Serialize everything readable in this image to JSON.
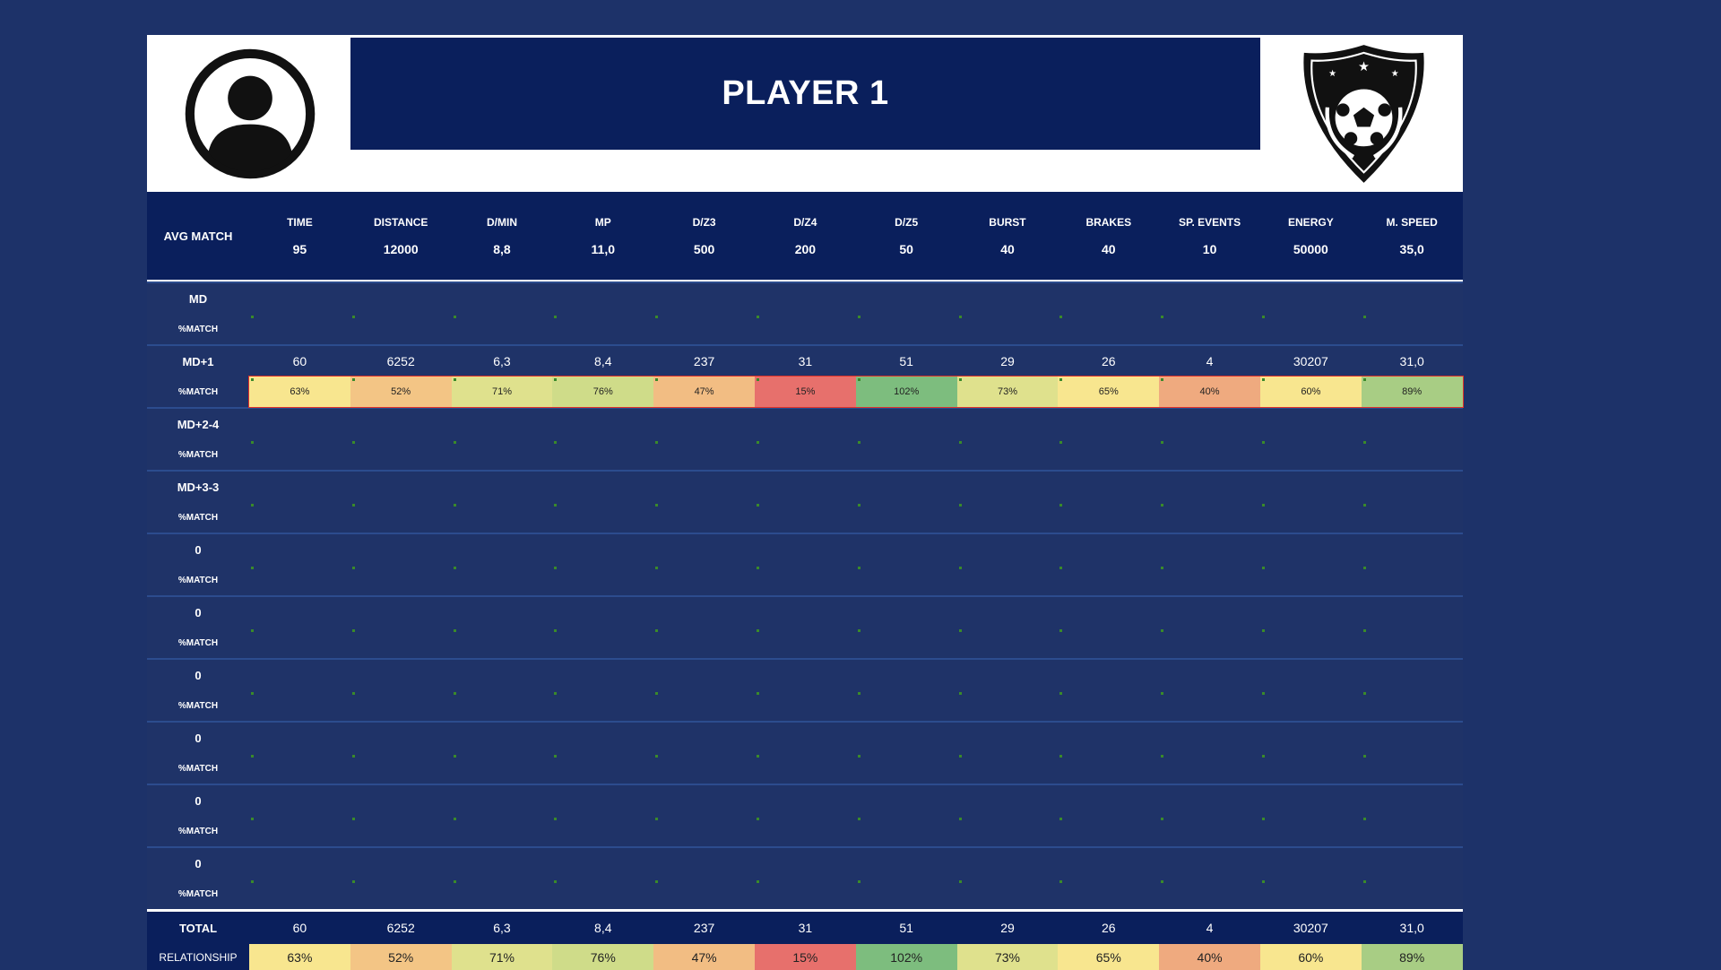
{
  "title": "PLAYER 1",
  "header": {
    "label": "AVG MATCH",
    "columns": [
      "TIME",
      "DISTANCE",
      "D/MIN",
      "MP",
      "D/Z3",
      "D/Z4",
      "D/Z5",
      "BURST",
      "BRAKES",
      "SP. EVENTS",
      "ENERGY",
      "M. SPEED"
    ],
    "values": [
      "95",
      "12000",
      "8,8",
      "11,0",
      "500",
      "200",
      "50",
      "40",
      "40",
      "10",
      "50000",
      "35,0"
    ]
  },
  "pct_label": "%MATCH",
  "groups": [
    {
      "name": "MD",
      "values": [],
      "pcts": []
    },
    {
      "name": "MD+1",
      "values": [
        "60",
        "6252",
        "6,3",
        "8,4",
        "237",
        "31",
        "51",
        "29",
        "26",
        "4",
        "30207",
        "31,0"
      ],
      "pcts": [
        "63%",
        "52%",
        "71%",
        "76%",
        "47%",
        "15%",
        "102%",
        "73%",
        "65%",
        "40%",
        "60%",
        "89%"
      ],
      "highlighted": true
    },
    {
      "name": "MD+2-4",
      "values": [],
      "pcts": []
    },
    {
      "name": "MD+3-3",
      "values": [],
      "pcts": []
    },
    {
      "name": "0",
      "values": [],
      "pcts": []
    },
    {
      "name": "0",
      "values": [],
      "pcts": []
    },
    {
      "name": "0",
      "values": [],
      "pcts": []
    },
    {
      "name": "0",
      "values": [],
      "pcts": []
    },
    {
      "name": "0",
      "values": [],
      "pcts": []
    },
    {
      "name": "0",
      "values": [],
      "pcts": []
    }
  ],
  "total": {
    "label": "TOTAL",
    "values": [
      "60",
      "6252",
      "6,3",
      "8,4",
      "237",
      "31",
      "51",
      "29",
      "26",
      "4",
      "30207",
      "31,0"
    ]
  },
  "relationship": {
    "label": "RELATIONSHIP",
    "values": [
      "63%",
      "52%",
      "71%",
      "76%",
      "47%",
      "15%",
      "102%",
      "73%",
      "65%",
      "40%",
      "60%",
      "89%"
    ]
  },
  "pct_colors": [
    "#f8e68f",
    "#f3c585",
    "#dfe18d",
    "#cfdc89",
    "#f2bd83",
    "#e7706c",
    "#7dbd7e",
    "#dfe18d",
    "#f8e68f",
    "#efaa7f",
    "#f8e68f",
    "#a8cd84"
  ]
}
